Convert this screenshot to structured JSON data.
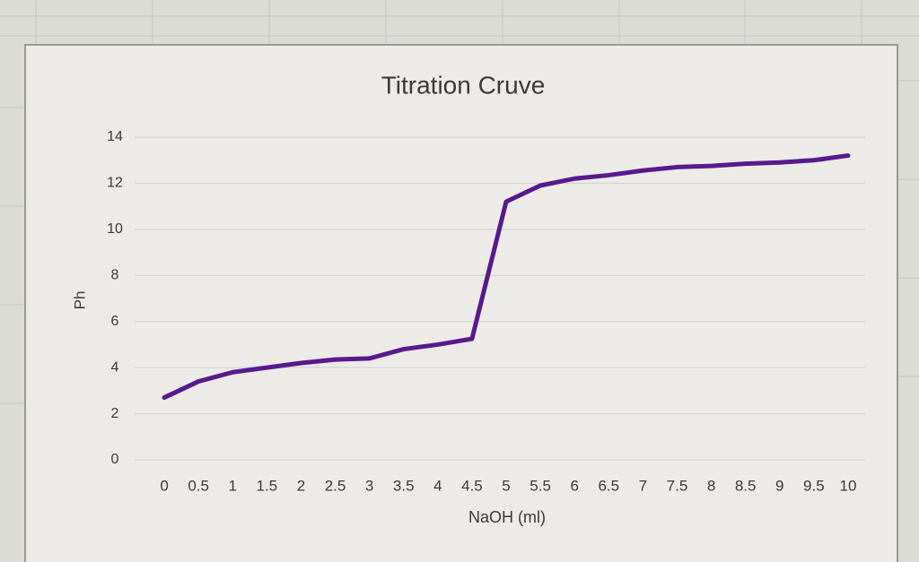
{
  "chart_data": {
    "type": "line",
    "title": "Titration Cruve",
    "x_label": "NaOH (ml)",
    "y_label": "Ph",
    "categories": [
      "0",
      "0.5",
      "1",
      "1.5",
      "2",
      "2.5",
      "3",
      "3.5",
      "4",
      "4.5",
      "5",
      "5.5",
      "6",
      "6.5",
      "7",
      "7.5",
      "8",
      "8.5",
      "9",
      "9.5",
      "10"
    ],
    "series": [
      {
        "name": "Ph",
        "color": "#58198e",
        "values": [
          2.7,
          3.4,
          3.8,
          4.0,
          4.2,
          4.35,
          4.4,
          4.8,
          5.0,
          5.25,
          11.2,
          11.9,
          12.2,
          12.35,
          12.55,
          12.7,
          12.75,
          12.85,
          12.9,
          13.0,
          13.2
        ]
      }
    ],
    "ylim": [
      0,
      14
    ],
    "yticks": [
      0,
      2,
      4,
      6,
      8,
      10,
      12,
      14
    ],
    "grid": true
  }
}
